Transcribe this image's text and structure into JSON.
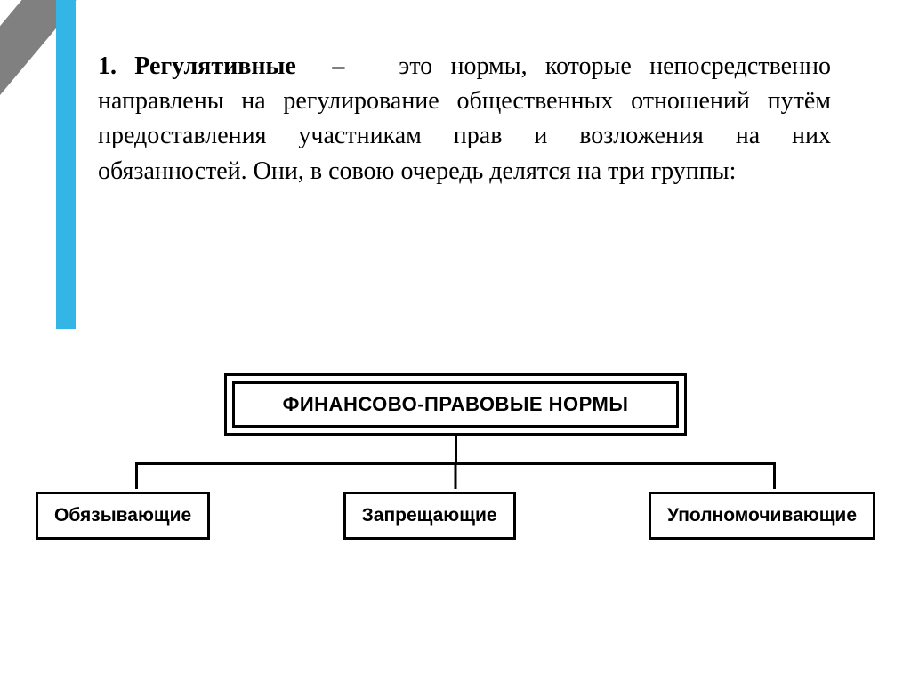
{
  "text": {
    "term": "1. Регулятивные",
    "dash": "–",
    "body1": "это нормы, которые непосредственно направлены на регулирование общественных отношений путём предоставления участникам прав и возложения на них обязанностей. Они, в совою очередь делятся на три группы:"
  },
  "diagram": {
    "root": "ФИНАНСОВО-ПРАВОВЫЕ НОРМЫ",
    "children": [
      "Обязывающие",
      "Запрещающие",
      "Уполномочивающие"
    ]
  },
  "styling": {
    "accent_blue": "#33b5e5",
    "gray": "#808080",
    "text_color": "#000000",
    "body_font_size": 28,
    "diagram_root_font_size": 22,
    "diagram_child_font_size": 21,
    "border_width": 3,
    "border_color": "#000000",
    "background": "#ffffff"
  }
}
